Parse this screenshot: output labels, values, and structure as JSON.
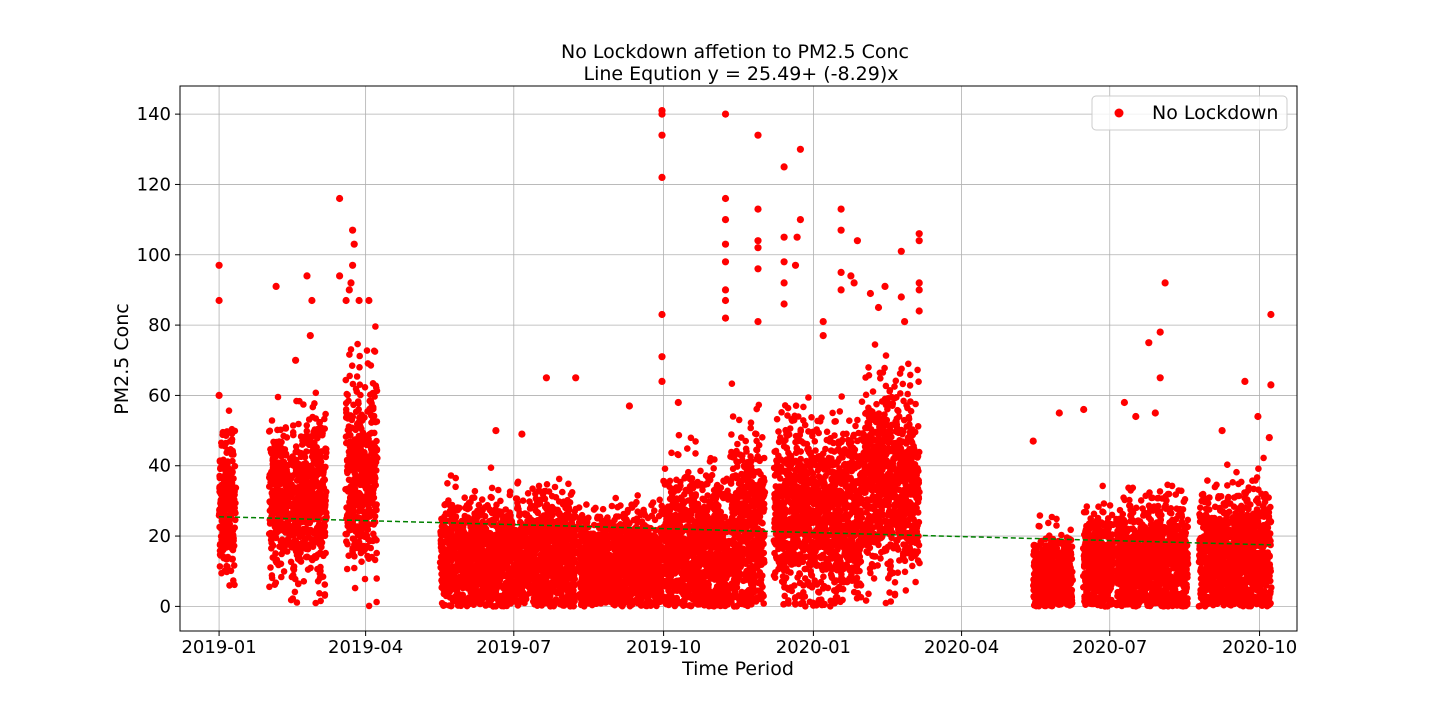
{
  "chart_data": {
    "type": "scatter",
    "title": "No Lockdown affetion to PM2.5 Conc",
    "subtitle": "Line Eqution y = 25.49+ (-8.29)x",
    "xlabel": "Time Period",
    "ylabel": "PM2.5 Conc",
    "x_ticks": [
      "2019-01",
      "2019-04",
      "2019-07",
      "2019-10",
      "2020-01",
      "2020-04",
      "2020-07",
      "2020-10"
    ],
    "y_ticks": [
      0,
      20,
      40,
      60,
      80,
      100,
      120,
      140
    ],
    "xlim": [
      "2018-12-08",
      "2020-10-24"
    ],
    "ylim": [
      -7,
      148
    ],
    "grid": true,
    "legend_position": "top-right",
    "colors": {
      "points": "#ff0000",
      "trend": "#008000"
    },
    "series": [
      {
        "name": "No Lockdown",
        "marker": "circle",
        "color": "#ff0000",
        "clusters": [
          {
            "start": "2019-01-01",
            "end": "2019-01-11",
            "center": 28,
            "spread": 10
          },
          {
            "start": "2019-02-01",
            "end": "2019-02-13",
            "center": 30,
            "spread": 10
          },
          {
            "start": "2019-02-14",
            "end": "2019-03-08",
            "center": 30,
            "spread": 11
          },
          {
            "start": "2019-03-20",
            "end": "2019-04-08",
            "center": 38,
            "spread": 14
          },
          {
            "start": "2019-05-17",
            "end": "2019-06-30",
            "center": 14,
            "spread": 8
          },
          {
            "start": "2019-07-01",
            "end": "2019-08-08",
            "center": 14,
            "spread": 8
          },
          {
            "start": "2019-08-10",
            "end": "2019-09-30",
            "center": 12,
            "spread": 7
          },
          {
            "start": "2019-10-01",
            "end": "2019-11-10",
            "center": 16,
            "spread": 11
          },
          {
            "start": "2019-11-11",
            "end": "2019-12-02",
            "center": 22,
            "spread": 13
          },
          {
            "start": "2019-12-08",
            "end": "2020-01-31",
            "center": 26,
            "spread": 12
          },
          {
            "start": "2020-02-01",
            "end": "2020-03-06",
            "center": 35,
            "spread": 13
          },
          {
            "start": "2020-05-15",
            "end": "2020-06-08",
            "center": 8,
            "spread": 6
          },
          {
            "start": "2020-06-15",
            "end": "2020-07-03",
            "center": 12,
            "spread": 7
          },
          {
            "start": "2020-07-05",
            "end": "2020-08-18",
            "center": 12,
            "spread": 8
          },
          {
            "start": "2020-08-25",
            "end": "2020-10-08",
            "center": 14,
            "spread": 9
          }
        ],
        "outliers": [
          {
            "x": "2019-01-01",
            "y": 97
          },
          {
            "x": "2019-01-01",
            "y": 87
          },
          {
            "x": "2019-01-01",
            "y": 60
          },
          {
            "x": "2019-02-05",
            "y": 91
          },
          {
            "x": "2019-02-17",
            "y": 70
          },
          {
            "x": "2019-02-24",
            "y": 94
          },
          {
            "x": "2019-02-27",
            "y": 87
          },
          {
            "x": "2019-02-26",
            "y": 77
          },
          {
            "x": "2019-03-16",
            "y": 116
          },
          {
            "x": "2019-03-16",
            "y": 94
          },
          {
            "x": "2019-03-24",
            "y": 107
          },
          {
            "x": "2019-03-25",
            "y": 103
          },
          {
            "x": "2019-03-24",
            "y": 97
          },
          {
            "x": "2019-03-23",
            "y": 92
          },
          {
            "x": "2019-03-22",
            "y": 90
          },
          {
            "x": "2019-03-28",
            "y": 87
          },
          {
            "x": "2019-04-03",
            "y": 87
          },
          {
            "x": "2019-03-20",
            "y": 87
          },
          {
            "x": "2019-06-20",
            "y": 50
          },
          {
            "x": "2019-07-06",
            "y": 49
          },
          {
            "x": "2019-07-21",
            "y": 65
          },
          {
            "x": "2019-08-08",
            "y": 65
          },
          {
            "x": "2019-09-10",
            "y": 57
          },
          {
            "x": "2019-09-30",
            "y": 141
          },
          {
            "x": "2019-09-30",
            "y": 140
          },
          {
            "x": "2019-09-30",
            "y": 134
          },
          {
            "x": "2019-09-30",
            "y": 122
          },
          {
            "x": "2019-09-30",
            "y": 83
          },
          {
            "x": "2019-09-30",
            "y": 71
          },
          {
            "x": "2019-09-30",
            "y": 64
          },
          {
            "x": "2019-10-10",
            "y": 58
          },
          {
            "x": "2019-11-08",
            "y": 140
          },
          {
            "x": "2019-11-08",
            "y": 116
          },
          {
            "x": "2019-11-08",
            "y": 110
          },
          {
            "x": "2019-11-08",
            "y": 103
          },
          {
            "x": "2019-11-08",
            "y": 98
          },
          {
            "x": "2019-11-08",
            "y": 90
          },
          {
            "x": "2019-11-08",
            "y": 87
          },
          {
            "x": "2019-11-08",
            "y": 82
          },
          {
            "x": "2019-11-28",
            "y": 134
          },
          {
            "x": "2019-11-28",
            "y": 113
          },
          {
            "x": "2019-11-28",
            "y": 104
          },
          {
            "x": "2019-11-28",
            "y": 102
          },
          {
            "x": "2019-11-28",
            "y": 96
          },
          {
            "x": "2019-11-28",
            "y": 81
          },
          {
            "x": "2019-12-14",
            "y": 125
          },
          {
            "x": "2019-12-14",
            "y": 105
          },
          {
            "x": "2019-12-14",
            "y": 98
          },
          {
            "x": "2019-12-14",
            "y": 92
          },
          {
            "x": "2019-12-14",
            "y": 86
          },
          {
            "x": "2019-12-24",
            "y": 130
          },
          {
            "x": "2019-12-24",
            "y": 110
          },
          {
            "x": "2019-12-22",
            "y": 105
          },
          {
            "x": "2019-12-21",
            "y": 97
          },
          {
            "x": "2020-01-07",
            "y": 81
          },
          {
            "x": "2020-01-07",
            "y": 77
          },
          {
            "x": "2020-01-18",
            "y": 113
          },
          {
            "x": "2020-01-18",
            "y": 107
          },
          {
            "x": "2020-01-18",
            "y": 95
          },
          {
            "x": "2020-01-18",
            "y": 90
          },
          {
            "x": "2020-01-28",
            "y": 104
          },
          {
            "x": "2020-01-24",
            "y": 94
          },
          {
            "x": "2020-01-26",
            "y": 92
          },
          {
            "x": "2020-02-05",
            "y": 89
          },
          {
            "x": "2020-02-10",
            "y": 85
          },
          {
            "x": "2020-02-14",
            "y": 91
          },
          {
            "x": "2020-02-24",
            "y": 101
          },
          {
            "x": "2020-02-24",
            "y": 88
          },
          {
            "x": "2020-02-26",
            "y": 81
          },
          {
            "x": "2020-03-06",
            "y": 106
          },
          {
            "x": "2020-03-06",
            "y": 104
          },
          {
            "x": "2020-03-06",
            "y": 92
          },
          {
            "x": "2020-03-06",
            "y": 90
          },
          {
            "x": "2020-03-06",
            "y": 84
          },
          {
            "x": "2020-05-15",
            "y": 47
          },
          {
            "x": "2020-05-31",
            "y": 55
          },
          {
            "x": "2020-06-15",
            "y": 56
          },
          {
            "x": "2020-07-10",
            "y": 58
          },
          {
            "x": "2020-07-17",
            "y": 54
          },
          {
            "x": "2020-07-25",
            "y": 75
          },
          {
            "x": "2020-08-01",
            "y": 78
          },
          {
            "x": "2020-08-01",
            "y": 65
          },
          {
            "x": "2020-08-04",
            "y": 92
          },
          {
            "x": "2020-07-29",
            "y": 55
          },
          {
            "x": "2020-09-22",
            "y": 64
          },
          {
            "x": "2020-09-08",
            "y": 50
          },
          {
            "x": "2020-09-30",
            "y": 54
          },
          {
            "x": "2020-10-08",
            "y": 83
          },
          {
            "x": "2020-10-08",
            "y": 63
          },
          {
            "x": "2020-10-07",
            "y": 48
          }
        ]
      }
    ],
    "trend_line": {
      "label": "Line Eqution y = 25.49+ (-8.29)x",
      "style": "dashed",
      "color": "#008000",
      "start": {
        "x": "2019-01-01",
        "y": 25.5
      },
      "end": {
        "x": "2020-10-08",
        "y": 17.5
      }
    }
  }
}
